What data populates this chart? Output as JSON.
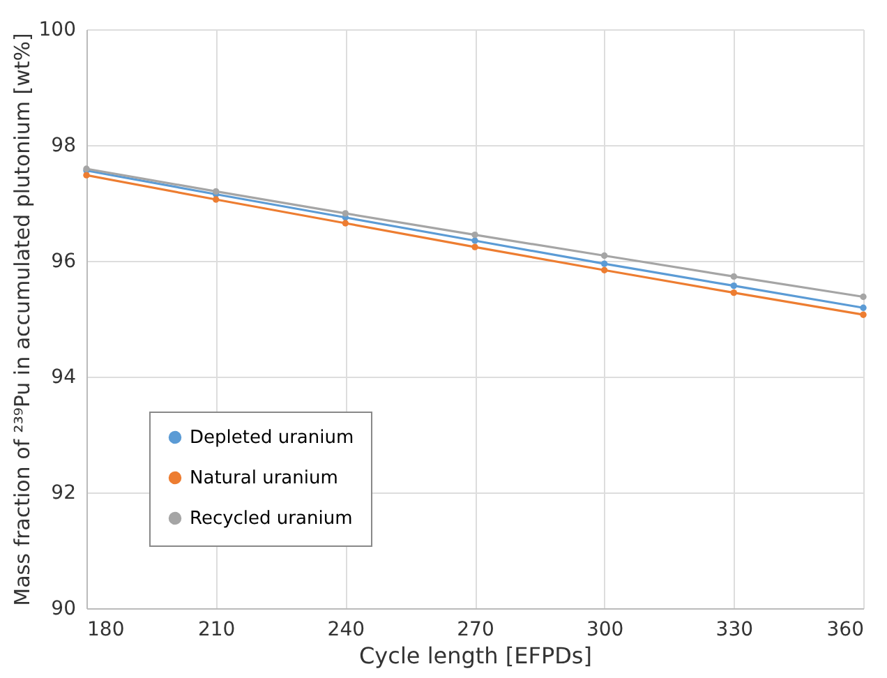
{
  "chart_data": {
    "type": "line",
    "xlabel": "Cycle length [EFPDs]",
    "ylabel": "Mass fraction of ²³⁹Pu in accumulated plutonium [wt%]",
    "x": [
      180,
      210,
      240,
      270,
      300,
      330,
      360
    ],
    "series": [
      {
        "name": "Depleted uranium",
        "color": "#5b9bd5",
        "values": [
          97.56,
          97.15,
          96.75,
          96.35,
          95.95,
          95.57,
          95.19
        ]
      },
      {
        "name": "Natural uranium",
        "color": "#ed7d31",
        "values": [
          97.48,
          97.06,
          96.65,
          96.24,
          95.84,
          95.45,
          95.07
        ]
      },
      {
        "name": "Recycled uranium",
        "color": "#a5a5a5",
        "values": [
          97.59,
          97.2,
          96.82,
          96.45,
          96.09,
          95.73,
          95.38
        ]
      }
    ],
    "xlim": [
      180,
      360
    ],
    "xticks": [
      180,
      210,
      240,
      270,
      300,
      330,
      360
    ],
    "ylim": [
      90,
      100
    ],
    "yticks": [
      90,
      92,
      94,
      96,
      98,
      100
    ],
    "grid": true,
    "legend": "bottom left",
    "marker": "circle",
    "line_style": "solid"
  }
}
